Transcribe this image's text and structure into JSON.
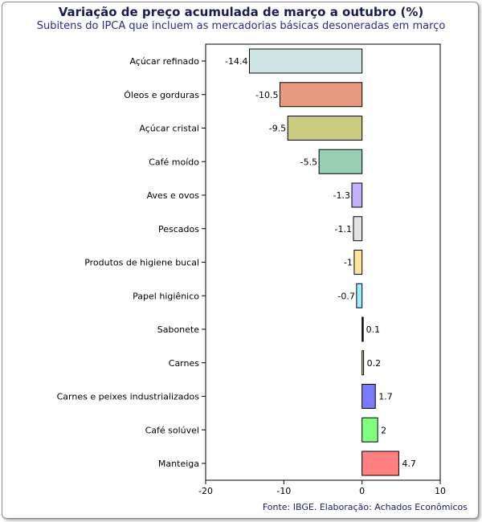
{
  "chart_data": {
    "type": "bar",
    "orientation": "horizontal",
    "title": "Variação de preço acumulada de março a outubro (%)",
    "subtitle": "Subitens do IPCA que incluem as mercadorias básicas desoneradas em março",
    "source": "Fonte: IBGE. Elaboração: Achados Econômicos",
    "categories": [
      "Açúcar refinado",
      "Óleos e gorduras",
      "Açúcar cristal",
      "Café moído",
      "Aves e ovos",
      "Pescados",
      "Produtos de higiene bucal",
      "Papel higiênico",
      "Sabonete",
      "Carnes",
      "Carnes e peixes industrializados",
      "Café solúvel",
      "Manteiga"
    ],
    "values": [
      -14.4,
      -10.5,
      -9.5,
      -5.5,
      -1.3,
      -1.1,
      -1,
      -0.7,
      0.1,
      0.2,
      1.7,
      2,
      4.7
    ],
    "value_labels": [
      "-14.4",
      "-10.5",
      "-9.5",
      "-5.5",
      "-1.3",
      "-1.1",
      "-1",
      "-0.7",
      "0.1",
      "0.2",
      "1.7",
      "2",
      "4.7"
    ],
    "colors": [
      "#cfe5e5",
      "#e89a80",
      "#cccc80",
      "#99cfb3",
      "#c4b0ff",
      "#e3e3e3",
      "#ffe599",
      "#99eeff",
      "#2a2a2a",
      "#e8d9a0",
      "#7a7aff",
      "#80ff80",
      "#ff8080"
    ],
    "xlim": [
      -20,
      10
    ],
    "xticks": [
      -20,
      -10,
      0,
      10
    ],
    "xtick_labels": [
      "-20",
      "-10",
      "0",
      "10"
    ],
    "xlabel": "",
    "ylabel": "",
    "grid": false,
    "legend": "none"
  }
}
